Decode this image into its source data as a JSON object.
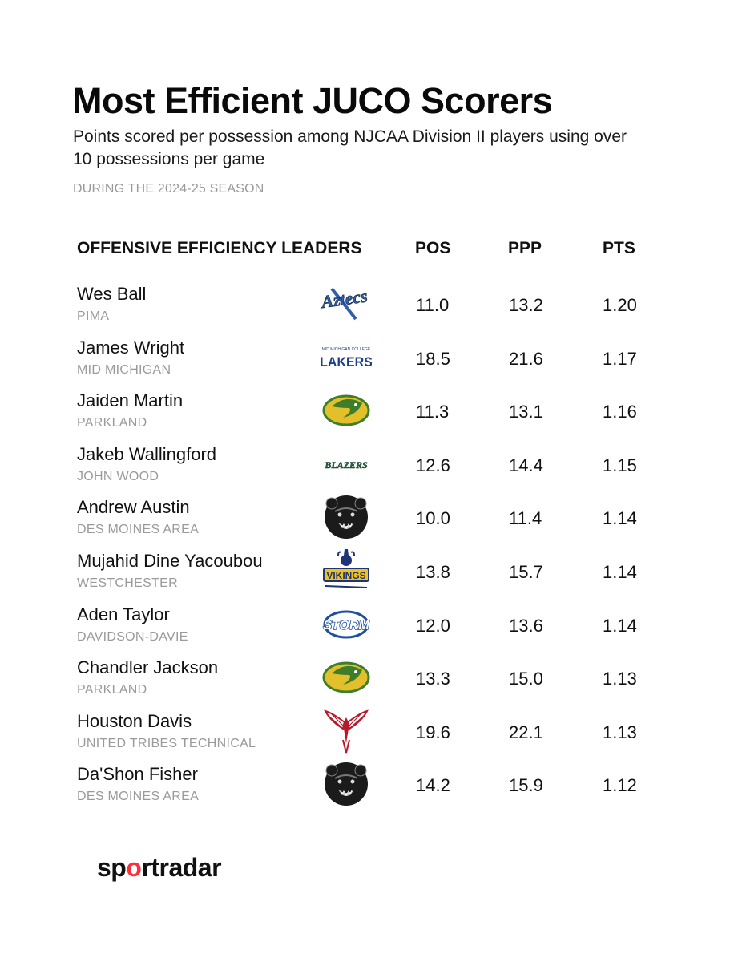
{
  "header": {
    "title": "Most Efficient JUCO Scorers",
    "subtitle": "Points scored per possession among NJCAA Division II players using over 10 possessions per game",
    "season": "DURING THE 2024-25 SEASON"
  },
  "columns": {
    "main": "OFFENSIVE EFFICIENCY LEADERS",
    "pos": "POS",
    "ppp": "PPP",
    "pts": "PTS"
  },
  "rows": [
    {
      "player": "Wes Ball",
      "school": "PIMA",
      "logo": "aztecs-logo",
      "pos": "11.0",
      "ppp": "13.2",
      "pts": "1.20"
    },
    {
      "player": "James Wright",
      "school": "MID MICHIGAN",
      "logo": "lakers-logo",
      "pos": "18.5",
      "ppp": "21.6",
      "pts": "1.17"
    },
    {
      "player": "Jaiden Martin",
      "school": "PARKLAND",
      "logo": "cobra-logo",
      "pos": "11.3",
      "ppp": "13.1",
      "pts": "1.16"
    },
    {
      "player": "Jakeb Wallingford",
      "school": "JOHN WOOD",
      "logo": "blazers-logo",
      "pos": "12.6",
      "ppp": "14.4",
      "pts": "1.15"
    },
    {
      "player": "Andrew Austin",
      "school": "DES MOINES AREA",
      "logo": "bear-logo",
      "pos": "10.0",
      "ppp": "11.4",
      "pts": "1.14"
    },
    {
      "player": "Mujahid Dine Yacoubou",
      "school": "WESTCHESTER",
      "logo": "vikings-logo",
      "pos": "13.8",
      "ppp": "15.7",
      "pts": "1.14"
    },
    {
      "player": "Aden Taylor",
      "school": "DAVIDSON-DAVIE",
      "logo": "storm-logo",
      "pos": "12.0",
      "ppp": "13.6",
      "pts": "1.14"
    },
    {
      "player": "Chandler Jackson",
      "school": "PARKLAND",
      "logo": "cobra-logo",
      "pos": "13.3",
      "ppp": "15.0",
      "pts": "1.13"
    },
    {
      "player": "Houston Davis",
      "school": "UNITED TRIBES TECHNICAL",
      "logo": "phoenix-logo",
      "pos": "19.6",
      "ppp": "22.1",
      "pts": "1.13"
    },
    {
      "player": "Da'Shon Fisher",
      "school": "DES MOINES AREA",
      "logo": "bear-logo",
      "pos": "14.2",
      "ppp": "15.9",
      "pts": "1.12"
    }
  ],
  "chart_data": {
    "type": "table",
    "title": "Most Efficient JUCO Scorers",
    "subtitle": "Points scored per possession among NJCAA Division II players using over 10 possessions per game",
    "columns": [
      "OFFENSIVE EFFICIENCY LEADERS",
      "POS",
      "PPP",
      "PTS"
    ],
    "records": [
      [
        "Wes Ball",
        "PIMA",
        11.0,
        13.2,
        1.2
      ],
      [
        "James Wright",
        "MID MICHIGAN",
        18.5,
        21.6,
        1.17
      ],
      [
        "Jaiden Martin",
        "PARKLAND",
        11.3,
        13.1,
        1.16
      ],
      [
        "Jakeb Wallingford",
        "JOHN WOOD",
        12.6,
        14.4,
        1.15
      ],
      [
        "Andrew Austin",
        "DES MOINES AREA",
        10.0,
        11.4,
        1.14
      ],
      [
        "Mujahid Dine Yacoubou",
        "WESTCHESTER",
        13.8,
        15.7,
        1.14
      ],
      [
        "Aden Taylor",
        "DAVIDSON-DAVIE",
        12.0,
        13.6,
        1.14
      ],
      [
        "Chandler Jackson",
        "PARKLAND",
        13.3,
        15.0,
        1.13
      ],
      [
        "Houston Davis",
        "UNITED TRIBES TECHNICAL",
        19.6,
        22.1,
        1.13
      ],
      [
        "Da'Shon Fisher",
        "DES MOINES AREA",
        14.2,
        15.9,
        1.12
      ]
    ]
  },
  "logo_text": {
    "aztecs": "Aztecs",
    "lakers_top": "MID MICHIGAN COLLEGE",
    "lakers": "LAKERS",
    "blazers": "BLAZERS",
    "vikings": "VIKINGS",
    "storm": "STORM"
  },
  "colors": {
    "title": "#0a0a0a",
    "muted": "#9a9a9a",
    "aztecs_blue": "#2f5fb0",
    "lakers_navy": "#1d3f8a",
    "cobra_green": "#3e7d2a",
    "cobra_gold": "#e3c02b",
    "blazers_green": "#1e6a3c",
    "vikings_gold": "#f2c21c",
    "vikings_navy": "#1e3476",
    "storm_blue": "#1e4f9c",
    "phoenix_red": "#b8192a",
    "brand_red": "#ff2e3b"
  },
  "footer": {
    "brand_prefix": "sp",
    "brand_o": "o",
    "brand_mid": "rt",
    "brand_suffix": "radar"
  }
}
